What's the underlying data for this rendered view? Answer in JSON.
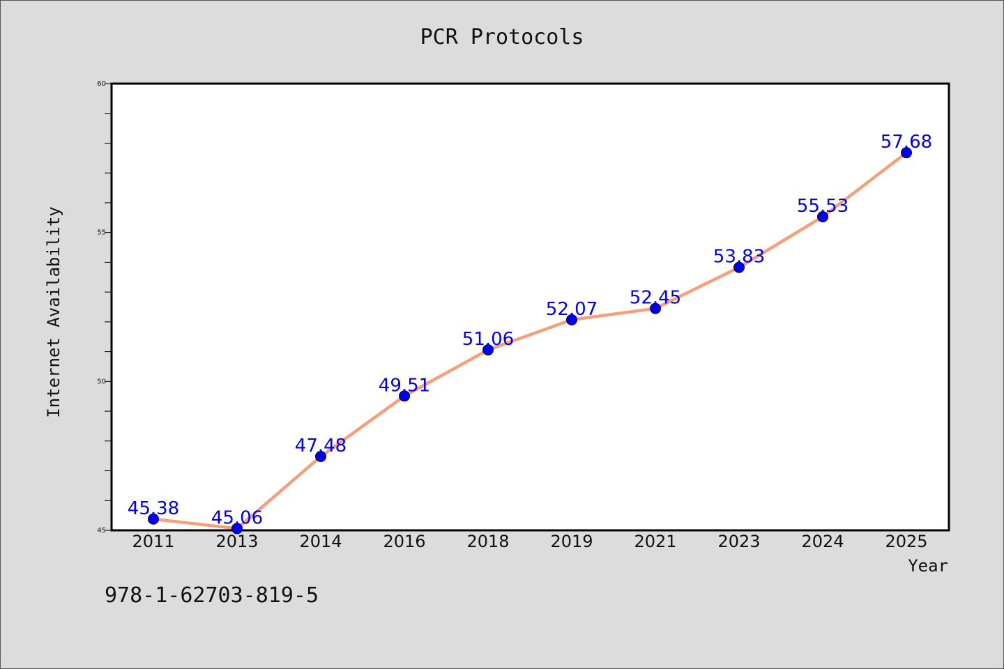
{
  "chart_data": {
    "type": "line",
    "title": "PCR Protocols",
    "xlabel": "Year",
    "ylabel": "Internet Availability",
    "categories": [
      "2011",
      "2013",
      "2014",
      "2016",
      "2018",
      "2019",
      "2021",
      "2023",
      "2024",
      "2025"
    ],
    "series": [
      {
        "values": [
          45.38,
          45.06,
          47.48,
          49.51,
          51.06,
          52.07,
          52.45,
          53.83,
          55.53,
          57.68
        ],
        "labels": [
          "45.38",
          "45.06",
          "47.48",
          "49.51",
          "51.06",
          "52.07",
          "52.45",
          "53.83",
          "55.53",
          "57.68"
        ]
      }
    ],
    "ylim": [
      45,
      60
    ],
    "yticks": [
      "45",
      "50",
      "55",
      "60"
    ],
    "grid": false,
    "colors": {
      "line": "#f4a07a",
      "marker": "#0000ee",
      "label": "#0000ee",
      "plot_background": "#ffffff",
      "page_background": "#dcdcdc"
    }
  },
  "footer": {
    "text": "978-1-62703-819-5"
  }
}
